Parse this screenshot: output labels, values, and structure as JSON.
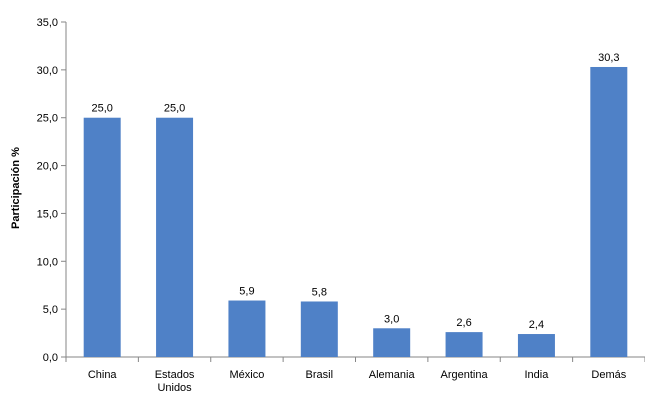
{
  "chart_data": {
    "type": "bar",
    "title": "",
    "xlabel": "",
    "ylabel": "Participación %",
    "ylim": [
      0,
      35
    ],
    "ytick_step": 5,
    "ytick_labels": [
      "0,0",
      "5,0",
      "10,0",
      "15,0",
      "20,0",
      "25,0",
      "30,0",
      "35,0"
    ],
    "categories": [
      [
        "China"
      ],
      [
        "Estados",
        "Unidos"
      ],
      [
        "México"
      ],
      [
        "Brasil"
      ],
      [
        "Alemania"
      ],
      [
        "Argentina"
      ],
      [
        "India"
      ],
      [
        "Demás"
      ]
    ],
    "values": [
      25.0,
      25.0,
      5.9,
      5.8,
      3.0,
      2.6,
      2.4,
      30.3
    ],
    "value_labels": [
      "25,0",
      "25,0",
      "5,9",
      "5,8",
      "3,0",
      "2,6",
      "2,4",
      "30,3"
    ],
    "bar_color": "#4f81c7",
    "grid": false,
    "legend": "none"
  }
}
